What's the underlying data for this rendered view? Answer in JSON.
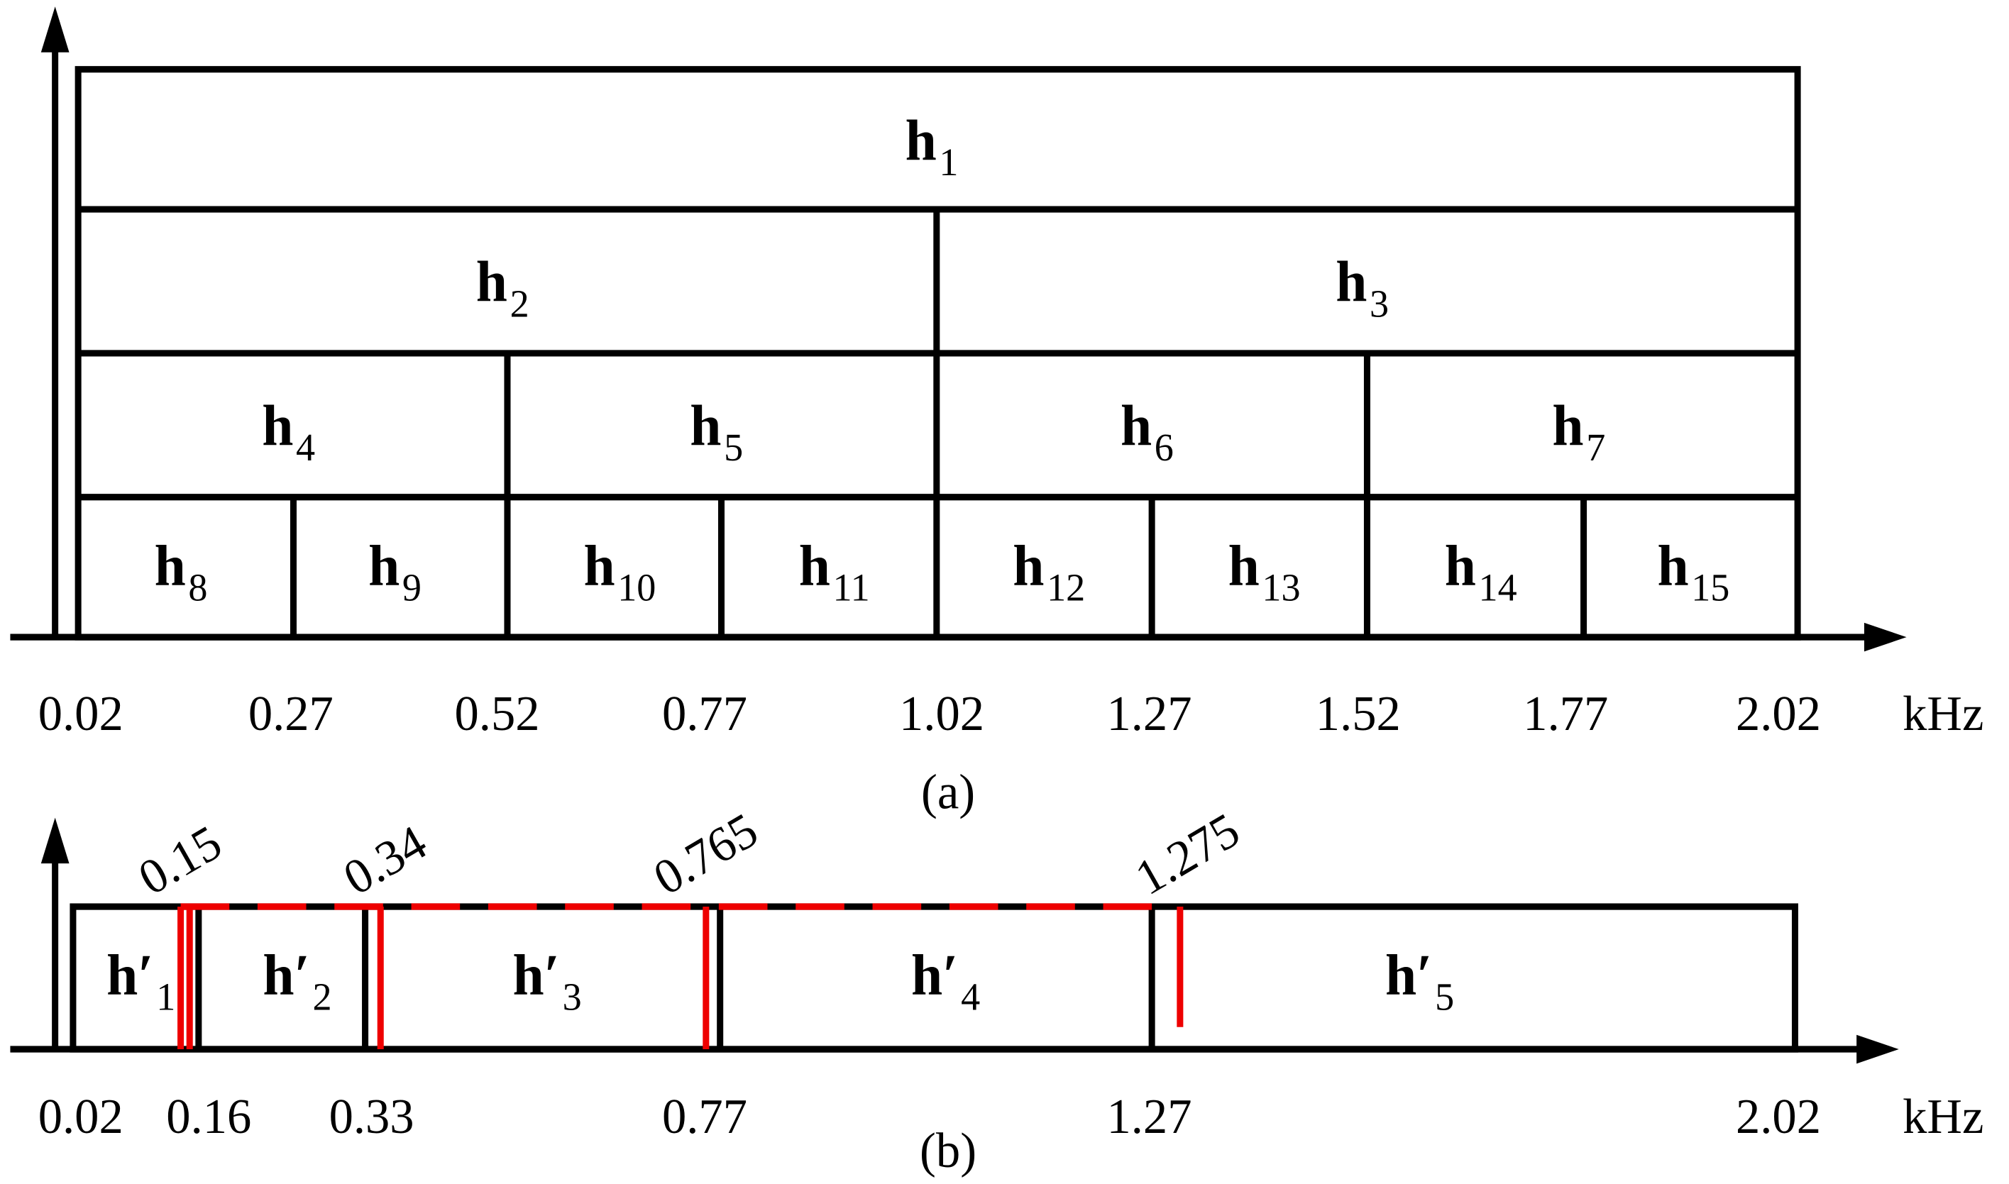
{
  "panel_a": {
    "nodes": [
      {
        "label": "h",
        "sub": "1"
      },
      {
        "label": "h",
        "sub": "2"
      },
      {
        "label": "h",
        "sub": "3"
      },
      {
        "label": "h",
        "sub": "4"
      },
      {
        "label": "h",
        "sub": "5"
      },
      {
        "label": "h",
        "sub": "6"
      },
      {
        "label": "h",
        "sub": "7"
      },
      {
        "label": "h",
        "sub": "8"
      },
      {
        "label": "h",
        "sub": "9"
      },
      {
        "label": "h",
        "sub": "10"
      },
      {
        "label": "h",
        "sub": "11"
      },
      {
        "label": "h",
        "sub": "12"
      },
      {
        "label": "h",
        "sub": "13"
      },
      {
        "label": "h",
        "sub": "14"
      },
      {
        "label": "h",
        "sub": "15"
      }
    ],
    "ticks": [
      "0.02",
      "0.27",
      "0.52",
      "0.77",
      "1.02",
      "1.27",
      "1.52",
      "1.77",
      "2.02"
    ],
    "unit": "kHz",
    "caption": "(a)"
  },
  "panel_b": {
    "nodes": [
      {
        "label": "h′",
        "sub": "1"
      },
      {
        "label": "h′",
        "sub": "2"
      },
      {
        "label": "h′",
        "sub": "3"
      },
      {
        "label": "h′",
        "sub": "4"
      },
      {
        "label": "h′",
        "sub": "5"
      }
    ],
    "ticks": [
      "0.02",
      "0.16",
      "0.33",
      "0.77",
      "1.27",
      "2.02"
    ],
    "boundaries": [
      "0.15",
      "0.34",
      "0.765",
      "1.275"
    ],
    "unit": "kHz",
    "caption": "(b)"
  }
}
